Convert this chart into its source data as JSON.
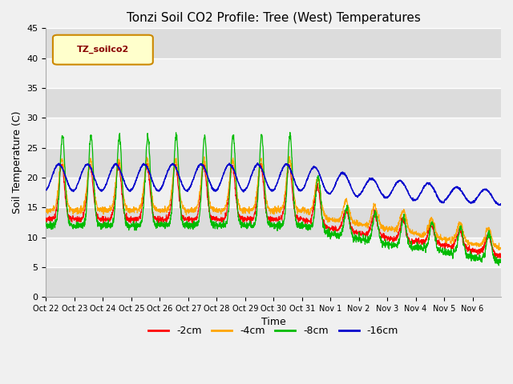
{
  "title": "Tonzi Soil CO2 Profile: Tree (West) Temperatures",
  "xlabel": "Time",
  "ylabel": "Soil Temperature (C)",
  "legend_label": "TZ_soilco2",
  "series_labels": [
    "-2cm",
    "-4cm",
    "-8cm",
    "-16cm"
  ],
  "series_colors": [
    "#ff0000",
    "#ffa500",
    "#00bb00",
    "#0000cc"
  ],
  "ylim": [
    0,
    45
  ],
  "yticks": [
    0,
    5,
    10,
    15,
    20,
    25,
    30,
    35,
    40,
    45
  ],
  "title_fontsize": 11,
  "axis_label_fontsize": 9,
  "tick_label_fontsize": 8,
  "legend_fontsize": 9,
  "xtick_labels": [
    "Oct 22",
    "Oct 23",
    "Oct 24",
    "Oct 25",
    "Oct 26",
    "Oct 27",
    "Oct 28",
    "Oct 29",
    "Oct 30",
    "Oct 31",
    "Nov 1",
    "Nov 2",
    "Nov 3",
    "Nov 4",
    "Nov 5",
    "Nov 6"
  ]
}
